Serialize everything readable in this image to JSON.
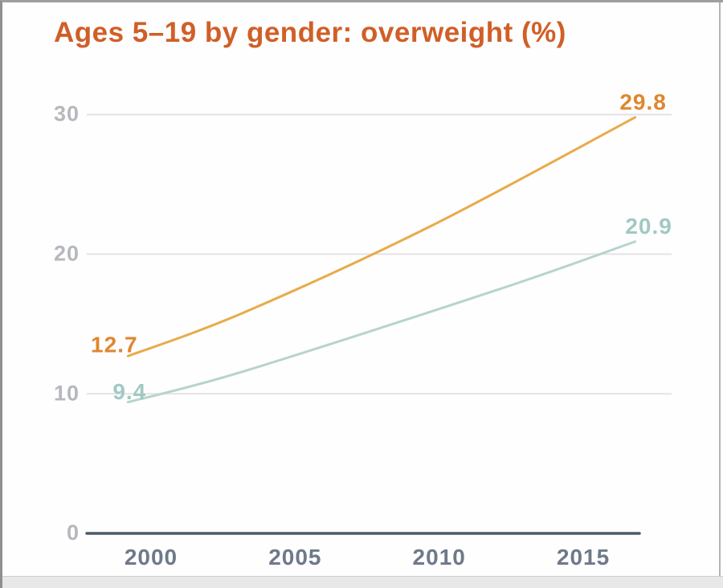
{
  "chart_data": {
    "type": "line",
    "title": "Ages 5–19 by gender: overweight (%)",
    "title_color": "#d05f27",
    "xlabel": "",
    "ylabel": "",
    "x_ticks": [
      2000,
      2005,
      2010,
      2015
    ],
    "y_ticks": [
      0,
      10,
      20,
      30
    ],
    "ylim": [
      0,
      32
    ],
    "x_range_years": [
      1999.2,
      2016.8
    ],
    "grid": true,
    "legend_position": "none",
    "axis_color": "#4d5a68",
    "gridline_color": "#e3e3e7",
    "y_tick_color": "#b5b8bc",
    "x_tick_color": "#6e7a89",
    "series": [
      {
        "name": "upper-orange-line",
        "color": "#e8ab4a",
        "label_color": "#e0862f",
        "points": [
          [
            1999.2,
            12.7
          ],
          [
            2003.2,
            15.8
          ],
          [
            2009.7,
            22.0
          ],
          [
            2016.8,
            29.8
          ]
        ],
        "first_label": "12.7",
        "last_label": "29.8"
      },
      {
        "name": "lower-teal-line",
        "color": "#b7d3ce",
        "label_color": "#a2c8c2",
        "points": [
          [
            1999.2,
            9.4
          ],
          [
            2003.2,
            11.6
          ],
          [
            2012.1,
            17.5
          ],
          [
            2016.8,
            20.9
          ]
        ],
        "first_label": "9.4",
        "last_label": "20.9"
      }
    ]
  }
}
